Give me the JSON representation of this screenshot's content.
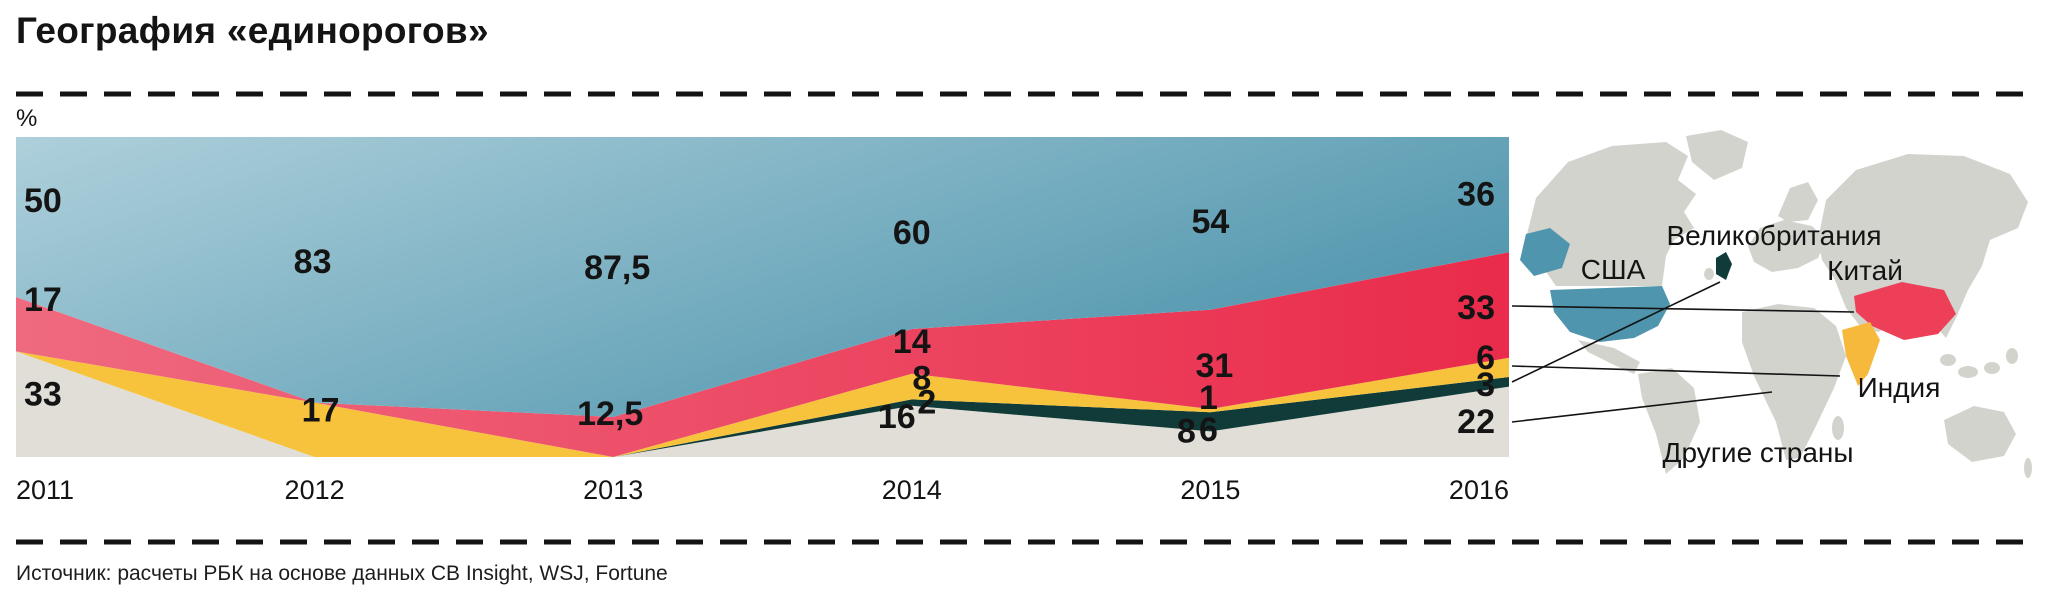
{
  "title": "География «единорогов»",
  "unit_label": "%",
  "source": "Источник: расчеты РБК на основе данных CB Insight, WSJ, Fortune",
  "map_labels": {
    "usa": "США",
    "uk": "Великобритания",
    "china": "Китай",
    "india": "Индия",
    "others": "Другие страны"
  },
  "colors": {
    "usa_light": "#aed0db",
    "usa_dark": "#4f95ad",
    "china_light": "#ef6a7f",
    "china_dark": "#ea2b4b",
    "india": "#f8c33c",
    "uk": "#103b39",
    "others": "#e0ded6",
    "map_land": "#d3d3ce",
    "text": "#141414"
  },
  "chart_data": {
    "type": "area",
    "stacked": true,
    "title": "География «единорогов»",
    "ylabel": "%",
    "ylim": [
      0,
      100
    ],
    "grid": false,
    "legend_position": "map-right",
    "x": [
      2011,
      2012,
      2013,
      2014,
      2015,
      2016
    ],
    "stack_order_bottom_to_top": [
      "others",
      "uk",
      "india",
      "china",
      "usa"
    ],
    "series": [
      {
        "id": "usa",
        "name": "США",
        "color": "#aed0db",
        "color2": "#4f95ad",
        "values": [
          50,
          83,
          87.5,
          60,
          54,
          36
        ]
      },
      {
        "id": "china",
        "name": "Китай",
        "color": "#ef6a7f",
        "color2": "#ea2b4b",
        "values": [
          17,
          0,
          12.5,
          14,
          31,
          33
        ]
      },
      {
        "id": "india",
        "name": "Индия",
        "color": "#f8c33c",
        "values": [
          0,
          17,
          0,
          8,
          1,
          6
        ]
      },
      {
        "id": "uk",
        "name": "Великобритания",
        "color": "#103b39",
        "values": [
          0,
          0,
          0,
          2,
          6,
          3
        ]
      },
      {
        "id": "others",
        "name": "Другие страны",
        "color": "#e0ded6",
        "values": [
          33,
          0,
          0,
          16,
          8,
          22
        ]
      }
    ],
    "value_labels": [
      {
        "year_index": 0,
        "series": "usa",
        "text": "50",
        "y_pct": 80,
        "dx": 8,
        "anchor": "start"
      },
      {
        "year_index": 0,
        "series": "china",
        "text": "17",
        "y_pct": 49,
        "dx": 8,
        "anchor": "start"
      },
      {
        "year_index": 0,
        "series": "others",
        "text": "33",
        "y_pct": 19.5,
        "dx": 8,
        "anchor": "start"
      },
      {
        "year_index": 1,
        "series": "usa",
        "text": "83",
        "y_pct": 61,
        "dx": -2
      },
      {
        "year_index": 1,
        "series": "india",
        "text": "17",
        "y_pct": 14.5,
        "dx": 6
      },
      {
        "year_index": 2,
        "series": "usa",
        "text": "87,5",
        "y_pct": 59,
        "dx": 4
      },
      {
        "year_index": 2,
        "series": "china",
        "text": "12,5",
        "y_pct": 13.5,
        "dx": -3
      },
      {
        "year_index": 3,
        "series": "usa",
        "text": "60",
        "y_pct": 70,
        "dx": 0
      },
      {
        "year_index": 3,
        "series": "china",
        "text": "14",
        "y_pct": 36,
        "dx": 0
      },
      {
        "year_index": 3,
        "series": "india",
        "text": "8",
        "y_pct": 24.5,
        "dx": 10
      },
      {
        "year_index": 3,
        "series": "uk",
        "text": "2",
        "y_pct": 17,
        "dx": 15
      },
      {
        "year_index": 3,
        "series": "others",
        "text": "16",
        "y_pct": 12.5,
        "dx": -15
      },
      {
        "year_index": 4,
        "series": "usa",
        "text": "54",
        "y_pct": 73.5,
        "dx": 0
      },
      {
        "year_index": 4,
        "series": "china",
        "text": "31",
        "y_pct": 28.5,
        "dx": 4
      },
      {
        "year_index": 4,
        "series": "india",
        "text": "1",
        "y_pct": 18.5,
        "dx": -2
      },
      {
        "year_index": 4,
        "series": "uk",
        "text": "6",
        "y_pct": 8.5,
        "dx": -2
      },
      {
        "year_index": 4,
        "series": "others",
        "text": "8",
        "y_pct": 8,
        "dx": -24
      },
      {
        "year_index": 5,
        "series": "usa",
        "text": "36",
        "y_pct": 82,
        "dx": -14,
        "anchor": "end"
      },
      {
        "year_index": 5,
        "series": "china",
        "text": "33",
        "y_pct": 46.5,
        "dx": -14,
        "anchor": "end"
      },
      {
        "year_index": 5,
        "series": "india",
        "text": "6",
        "y_pct": 31,
        "dx": -14,
        "anchor": "end"
      },
      {
        "year_index": 5,
        "series": "uk",
        "text": "3",
        "y_pct": 22.5,
        "dx": -14,
        "anchor": "end"
      },
      {
        "year_index": 5,
        "series": "others",
        "text": "22",
        "y_pct": 11,
        "dx": -14,
        "anchor": "end"
      }
    ]
  }
}
